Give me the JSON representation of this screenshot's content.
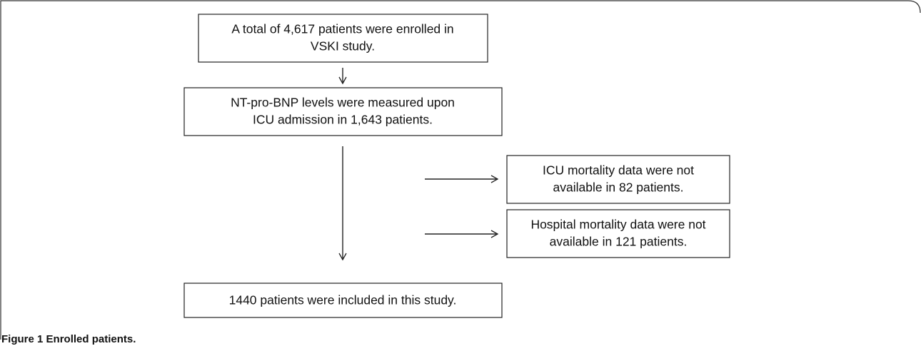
{
  "nodes": [
    {
      "lines": [
        "A total of 4,617 patients were enrolled in",
        "VSKI study."
      ]
    },
    {
      "lines": [
        "NT-pro-BNP levels were measured upon",
        "ICU admission in 1,643 patients."
      ]
    },
    {
      "lines": [
        "ICU mortality data were not",
        "available in 82 patients."
      ]
    },
    {
      "lines": [
        "Hospital mortality data were not",
        "available in 121 patients."
      ]
    },
    {
      "lines": [
        "1440 patients were included in this study."
      ]
    }
  ],
  "caption": {
    "label": "Figure 1",
    "title": "Enrolled patients."
  }
}
